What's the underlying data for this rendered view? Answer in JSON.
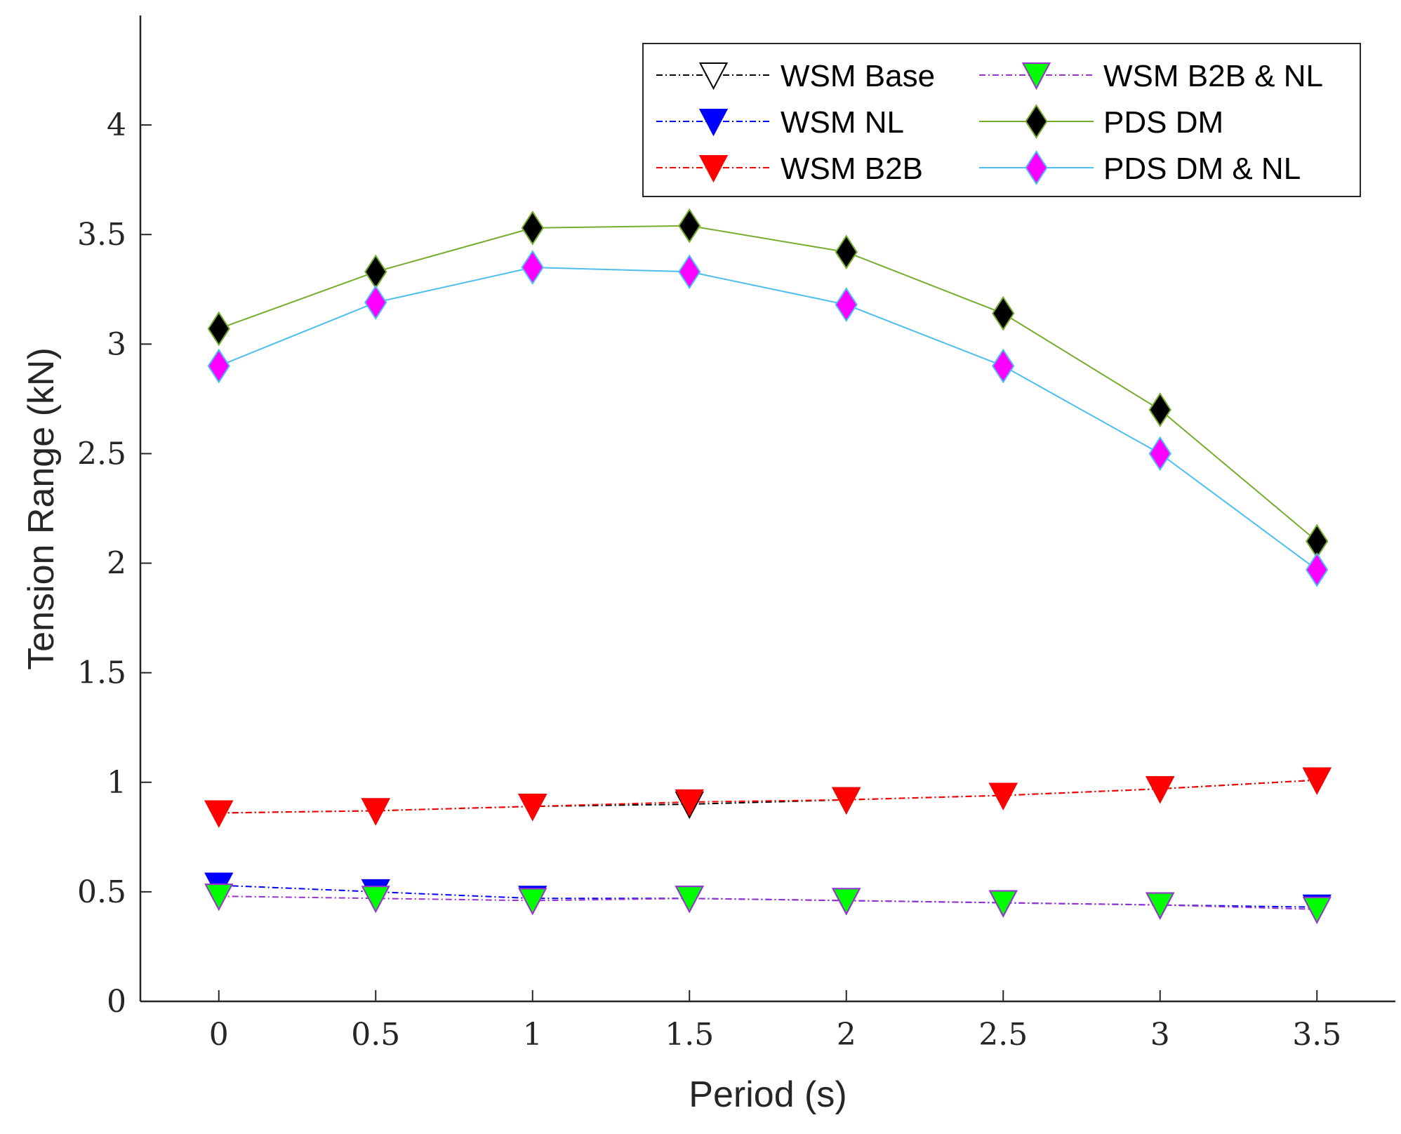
{
  "chart_data": {
    "type": "line",
    "xlabel": "Period (s)",
    "ylabel": "Tension Range (kN)",
    "xlim": [
      -0.25,
      3.75
    ],
    "ylim": [
      0,
      4.5
    ],
    "xticks": [
      0,
      0.5,
      1,
      1.5,
      2,
      2.5,
      3,
      3.5
    ],
    "yticks": [
      0,
      0.5,
      1,
      1.5,
      2,
      2.5,
      3,
      3.5,
      4
    ],
    "xtick_labels": [
      "0",
      "0.5",
      "1",
      "1.5",
      "2",
      "2.5",
      "3",
      "3.5"
    ],
    "ytick_labels": [
      "0",
      "0.5",
      "1",
      "1.5",
      "2",
      "2.5",
      "3",
      "3.5",
      "4"
    ],
    "grid": false,
    "legend_position": "top-right",
    "x": [
      0,
      0.5,
      1,
      1.5,
      2,
      2.5,
      3,
      3.5
    ],
    "series": [
      {
        "name": "WSM Base",
        "values": [
          0.86,
          0.87,
          0.89,
          0.9,
          0.92,
          0.94,
          0.97,
          1.01
        ],
        "color": "#000000",
        "marker": "triangle-down",
        "marker_fill": "#ffffff",
        "line_style": "dashdot"
      },
      {
        "name": "WSM NL",
        "values": [
          0.53,
          0.5,
          0.47,
          0.47,
          0.46,
          0.45,
          0.44,
          0.43
        ],
        "color": "#0000ff",
        "marker": "triangle-down",
        "marker_fill": "#0000ff",
        "line_style": "dashdot"
      },
      {
        "name": "WSM B2B",
        "values": [
          0.86,
          0.87,
          0.89,
          0.91,
          0.92,
          0.94,
          0.97,
          1.01
        ],
        "color": "#ff0000",
        "marker": "triangle-down",
        "marker_fill": "#ff0000",
        "line_style": "dashdot"
      },
      {
        "name": "WSM B2B & NL",
        "values": [
          0.48,
          0.47,
          0.46,
          0.47,
          0.46,
          0.45,
          0.44,
          0.42
        ],
        "color": "#9933cc",
        "marker": "triangle-down",
        "marker_fill": "#00ff00",
        "line_style": "dashdot"
      },
      {
        "name": "PDS DM",
        "values": [
          3.07,
          3.33,
          3.53,
          3.54,
          3.42,
          3.14,
          2.7,
          2.1
        ],
        "color": "#77ac30",
        "marker": "diamond",
        "marker_fill": "#000000",
        "line_style": "solid"
      },
      {
        "name": "PDS DM & NL",
        "values": [
          2.9,
          3.19,
          3.35,
          3.33,
          3.18,
          2.9,
          2.5,
          1.97
        ],
        "color": "#4dbeee",
        "marker": "diamond",
        "marker_fill": "#ff00ff",
        "line_style": "solid"
      }
    ]
  }
}
